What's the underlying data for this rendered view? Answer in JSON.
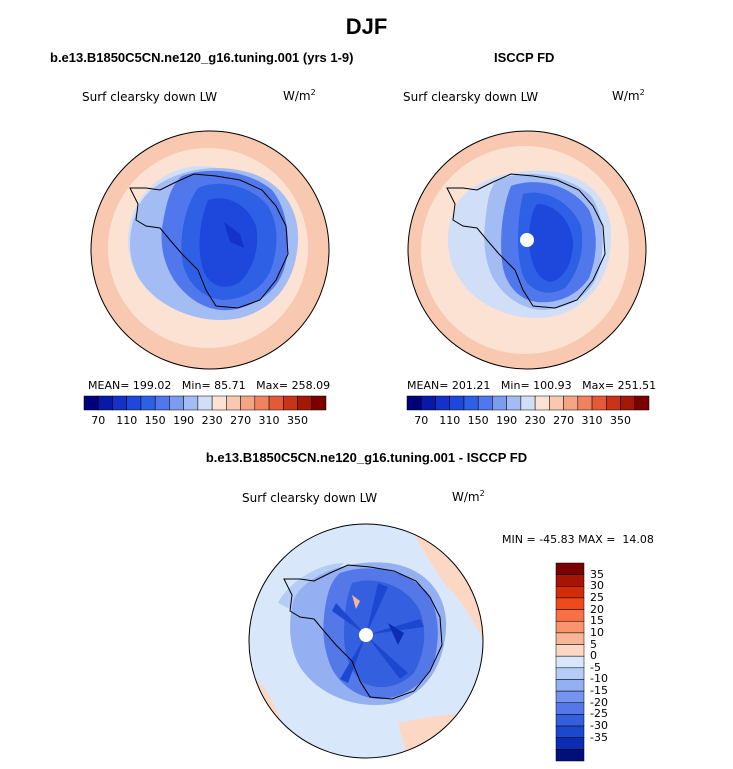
{
  "title": "DJF",
  "panels": [
    {
      "id": "model",
      "title": "b.e13.B1850C5CN.ne120_g16.tuning.001 (yrs 1-9)",
      "variable": "Surf clearsky down LW",
      "units_base": "W/m",
      "units_exp": "2",
      "mean_label": "MEAN=",
      "mean": "199.02",
      "min_label": "Min=",
      "min": "85.71",
      "max_label": "Max=",
      "max": "258.09"
    },
    {
      "id": "obs",
      "title": "ISCCP FD",
      "variable": "Surf clearsky down LW",
      "units_base": "W/m",
      "units_exp": "2",
      "mean_label": "MEAN=",
      "mean": "201.21",
      "min_label": "Min=",
      "min": "100.93",
      "max_label": "Max=",
      "max": "251.51"
    }
  ],
  "abs_colorbar": {
    "colors": [
      "#00007a",
      "#0a18a8",
      "#1432c8",
      "#1e48dc",
      "#2e60e6",
      "#5078ec",
      "#7c9cf0",
      "#a4bcf4",
      "#d0def8",
      "#fbe2d2",
      "#f8c8b0",
      "#f4a684",
      "#f08260",
      "#e45a38",
      "#c83418",
      "#a41808",
      "#7a0000"
    ],
    "labels": [
      "70",
      "110",
      "150",
      "190",
      "230",
      "270",
      "310",
      "350"
    ]
  },
  "diff_panel": {
    "title": "b.e13.B1850C5CN.ne120_g16.tuning.001 - ISCCP FD",
    "variable": "Surf clearsky down LW",
    "units_base": "W/m",
    "units_exp": "2",
    "min_label": "MIN =",
    "min": "-45.83",
    "max_label": "MAX =",
    "max": "14.08"
  },
  "diff_colorbar": {
    "colors": [
      "#7a0000",
      "#a81404",
      "#d42c08",
      "#f04a1c",
      "#f87046",
      "#f8946e",
      "#f8b698",
      "#fcd8c4",
      "#d8e8fa",
      "#b4ccf6",
      "#94b0f2",
      "#7494ee",
      "#5478e8",
      "#3460e0",
      "#1c48d0",
      "#0c2cb4",
      "#00107a"
    ],
    "labels": [
      "35",
      "30",
      "25",
      "20",
      "15",
      "10",
      "5",
      "0",
      "-5",
      "-10",
      "-15",
      "-20",
      "-25",
      "-30",
      "-35"
    ]
  }
}
